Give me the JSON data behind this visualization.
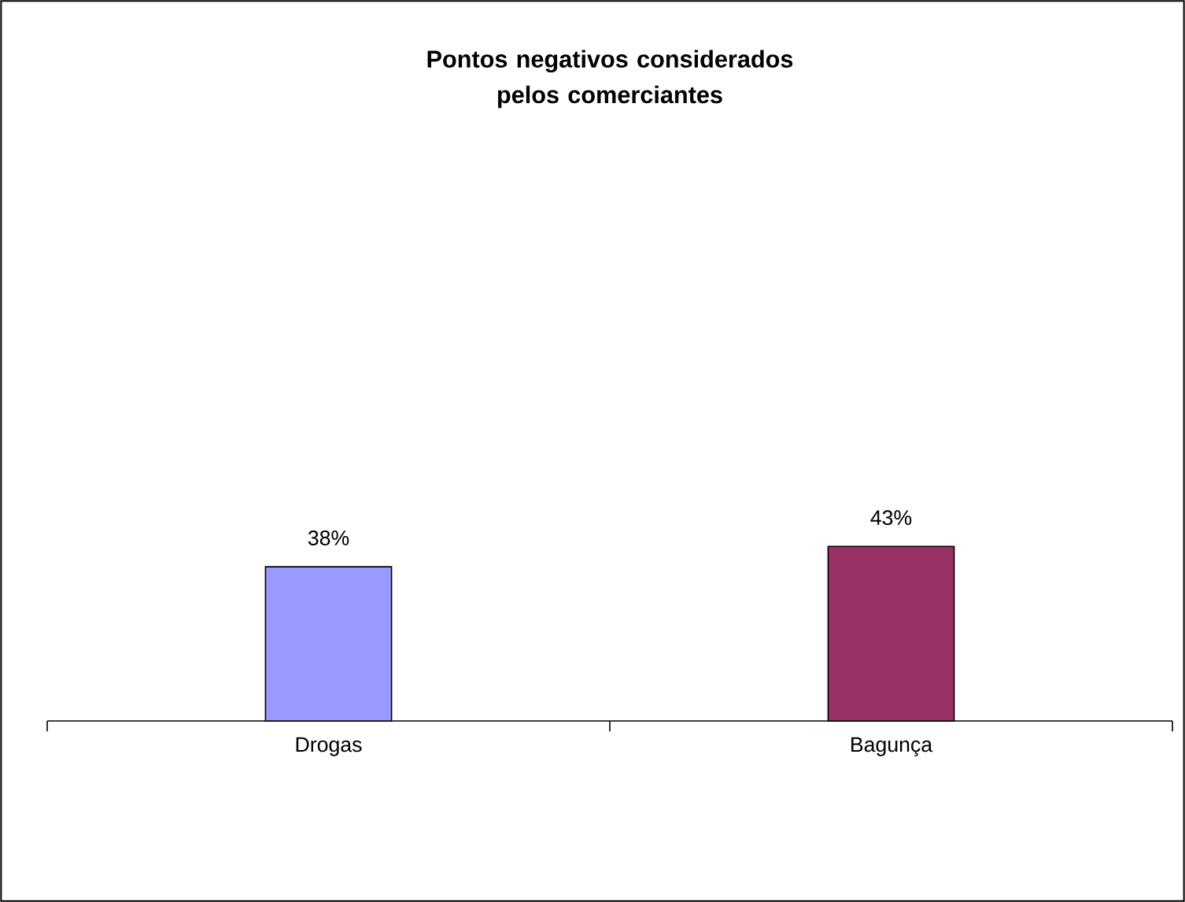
{
  "chart_data": {
    "type": "bar",
    "title": "Pontos negativos considerados pelos comerciantes",
    "categories": [
      "Drogas",
      "Bagunça"
    ],
    "values": [
      38,
      43
    ],
    "colors": [
      "#9999ff",
      "#993366"
    ],
    "value_labels": [
      "38%",
      "43%"
    ],
    "tick_labels": "x"
  }
}
